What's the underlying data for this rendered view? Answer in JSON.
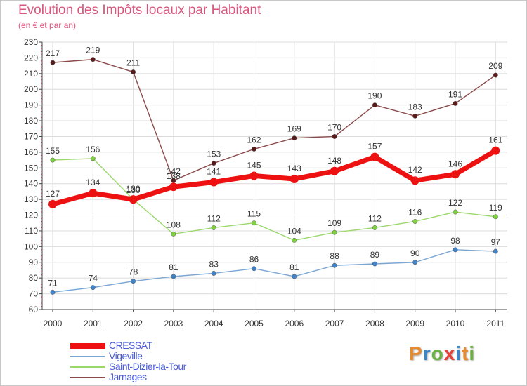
{
  "title": "Evolution des Impôts locaux par Habitant",
  "subtitle": "(en € et par an)",
  "colors": {
    "grid": "#dcdcdc",
    "axis": "#444444",
    "accent_ticks": "#d8557d",
    "label": "#333333",
    "legend_text": "#4a5bd6"
  },
  "logo": {
    "letters": [
      "P",
      "r",
      "o",
      "x",
      "i",
      "t",
      "i"
    ],
    "colors": [
      "#e88a2e",
      "#3c86c6",
      "#6bb33f",
      "#e5413a",
      "#3c86c6",
      "#e88a2e",
      "#6bb33f"
    ]
  },
  "chart_data": {
    "type": "line",
    "title": "Evolution des Impôts locaux par Habitant",
    "subtitle": "(en € et par an)",
    "xlabel": "",
    "ylabel": "",
    "categories": [
      "2000",
      "2001",
      "2002",
      "2003",
      "2004",
      "2005",
      "2006",
      "2007",
      "2008",
      "2009",
      "2010",
      "2011"
    ],
    "ylim": [
      60,
      230
    ],
    "yticks": [
      60,
      70,
      80,
      90,
      100,
      110,
      120,
      130,
      140,
      150,
      160,
      170,
      180,
      190,
      200,
      210,
      220,
      230
    ],
    "legend_position": "bottom-left",
    "series": [
      {
        "name": "CRESSAT",
        "color": "#ee1111",
        "marker": "#ee1111",
        "width": 7,
        "radius": 6,
        "values": [
          127,
          134,
          130,
          138,
          141,
          145,
          143,
          148,
          157,
          142,
          146,
          161
        ]
      },
      {
        "name": "Vigeville",
        "color": "#7aa6d4",
        "marker": "#3d84cc",
        "width": 1.4,
        "radius": 3.2,
        "values": [
          71,
          74,
          78,
          81,
          83,
          86,
          81,
          88,
          89,
          90,
          98,
          97
        ]
      },
      {
        "name": "Saint-Dizier-la-Tour",
        "color": "#9bd86b",
        "marker": "#7ed23e",
        "width": 1.4,
        "radius": 3.2,
        "values": [
          155,
          156,
          130,
          108,
          112,
          115,
          104,
          109,
          112,
          116,
          122,
          119
        ]
      },
      {
        "name": "Jarnages",
        "color": "#8b4a4a",
        "marker": "#5a1a1a",
        "width": 1.4,
        "radius": 3.2,
        "values": [
          217,
          219,
          211,
          142,
          153,
          162,
          169,
          170,
          190,
          183,
          191,
          209
        ]
      }
    ]
  }
}
